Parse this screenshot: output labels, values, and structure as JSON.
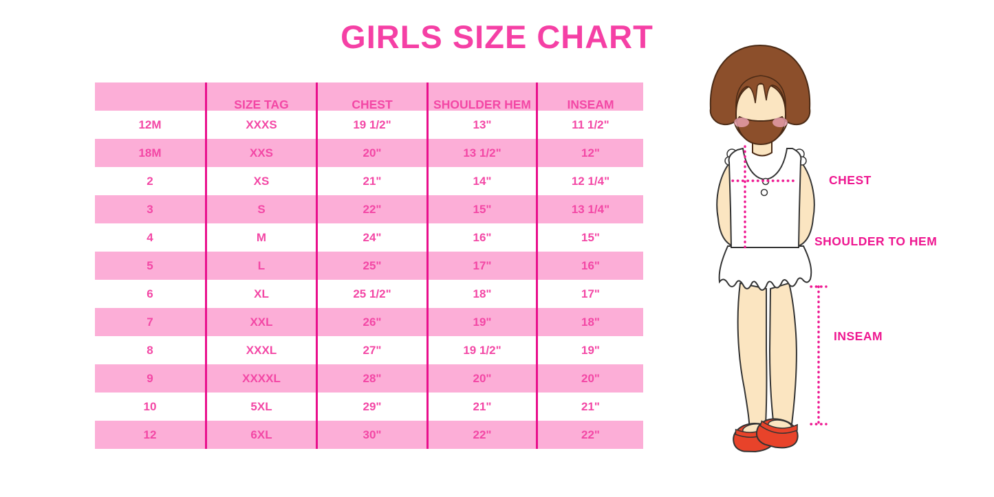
{
  "title": "GIRLS SIZE CHART",
  "colors": {
    "title_pink": "#F540A5",
    "table_text_pink": "#F347A5",
    "row_pink": "#FCAED7",
    "divider_magenta": "#E90F8C",
    "annotation_magenta": "#EE1690",
    "hair_brown": "#8C4F2B",
    "skin": "#FBE5C1",
    "blush": "#F2A8BC",
    "shoe_red": "#E8432A",
    "garment_white": "#FFFFFF"
  },
  "chart_data": {
    "type": "table",
    "title": "GIRLS SIZE CHART",
    "columns": [
      "",
      "SIZE TAG",
      "CHEST",
      "SHOULDER HEM",
      "INSEAM"
    ],
    "rows": [
      [
        "12M",
        "XXXS",
        "19 1/2\"",
        "13\"",
        "11 1/2\""
      ],
      [
        "18M",
        "XXS",
        "20\"",
        "13 1/2\"",
        "12\""
      ],
      [
        "2",
        "XS",
        "21\"",
        "14\"",
        "12 1/4\""
      ],
      [
        "3",
        "S",
        "22\"",
        "15\"",
        "13 1/4\""
      ],
      [
        "4",
        "M",
        "24\"",
        "16\"",
        "15\""
      ],
      [
        "5",
        "L",
        "25\"",
        "17\"",
        "16\""
      ],
      [
        "6",
        "XL",
        "25 1/2\"",
        "18\"",
        "17\""
      ],
      [
        "7",
        "XXL",
        "26\"",
        "19\"",
        "18\""
      ],
      [
        "8",
        "XXXL",
        "27\"",
        "19 1/2\"",
        "19\""
      ],
      [
        "9",
        "XXXXL",
        "28\"",
        "20\"",
        "20\""
      ],
      [
        "10",
        "5XL",
        "29\"",
        "21\"",
        "21\""
      ],
      [
        "12",
        "6XL",
        "30\"",
        "22\"",
        "22\""
      ]
    ]
  },
  "figure": {
    "labels": {
      "chest": "CHEST",
      "shoulder_to_hem": "SHOULDER TO HEM",
      "inseam": "INSEAM"
    }
  }
}
